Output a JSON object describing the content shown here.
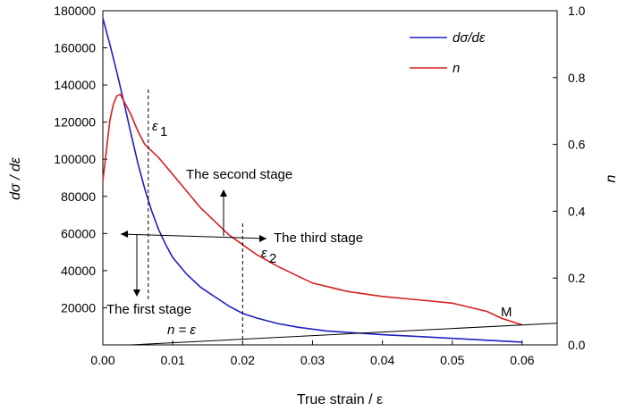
{
  "chart_data": {
    "type": "line",
    "xlabel": "True strain / ε",
    "ylabel_left": "dσ / dε",
    "ylabel_right": "n",
    "xlim": [
      0,
      0.065
    ],
    "ylim_left": [
      0,
      180000
    ],
    "ylim_right": [
      0,
      1.0
    ],
    "x_ticks": [
      "0.00",
      "0.01",
      "0.02",
      "0.03",
      "0.04",
      "0.05",
      "0.06"
    ],
    "y_left_ticks": [
      "20000",
      "40000",
      "60000",
      "80000",
      "100000",
      "120000",
      "140000",
      "160000",
      "180000"
    ],
    "y_right_ticks": [
      "0.0",
      "0.2",
      "0.4",
      "0.6",
      "0.8",
      "1.0"
    ],
    "grid": false,
    "legend_position": "top-right",
    "series": [
      {
        "name": "dσ/dε",
        "axis": "left",
        "color": "#1f1fbf",
        "x": [
          0.0,
          0.001,
          0.002,
          0.003,
          0.004,
          0.005,
          0.006,
          0.007,
          0.008,
          0.009,
          0.01,
          0.012,
          0.014,
          0.016,
          0.018,
          0.02,
          0.022,
          0.025,
          0.028,
          0.032,
          0.036,
          0.04,
          0.045,
          0.05,
          0.055,
          0.06
        ],
        "y": [
          176000,
          162000,
          147000,
          131000,
          114000,
          98000,
          84000,
          72000,
          62000,
          54000,
          47000,
          38000,
          31000,
          26000,
          21000,
          17000,
          14500,
          11500,
          9500,
          7500,
          6500,
          5500,
          4500,
          3500,
          2500,
          1500
        ]
      },
      {
        "name": "n",
        "axis": "right",
        "color": "#d42020",
        "x": [
          0.0,
          0.0005,
          0.001,
          0.0015,
          0.002,
          0.0025,
          0.003,
          0.004,
          0.005,
          0.006,
          0.007,
          0.008,
          0.009,
          0.01,
          0.012,
          0.014,
          0.016,
          0.018,
          0.02,
          0.022,
          0.025,
          0.028,
          0.03,
          0.035,
          0.04,
          0.045,
          0.05,
          0.052,
          0.055,
          0.057,
          0.06
        ],
        "y": [
          0.49,
          0.58,
          0.67,
          0.72,
          0.745,
          0.75,
          0.73,
          0.69,
          0.64,
          0.6,
          0.58,
          0.56,
          0.535,
          0.51,
          0.46,
          0.41,
          0.37,
          0.33,
          0.3,
          0.27,
          0.235,
          0.205,
          0.185,
          0.16,
          0.145,
          0.135,
          0.125,
          0.115,
          0.1,
          0.08,
          0.06
        ]
      },
      {
        "name": "n = ε",
        "axis": "right",
        "color": "#000000",
        "x": [
          0.004,
          0.065
        ],
        "y": [
          0.0,
          0.065
        ]
      }
    ],
    "annotations": {
      "eps1": "ε",
      "eps1_sub": "1",
      "eps1_x": 0.0065,
      "eps2": "ε",
      "eps2_sub": "2",
      "eps2_x": 0.02,
      "second_stage": "The second stage",
      "third_stage": "The third stage",
      "first_stage": "The first stage",
      "n_eq_eps": "n = ε",
      "point_M": "M"
    }
  }
}
